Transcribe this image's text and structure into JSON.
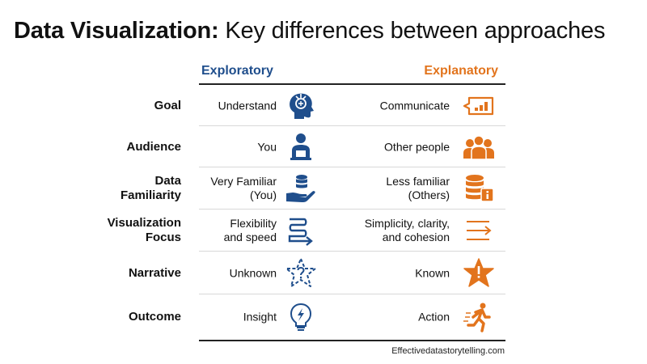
{
  "title": {
    "bold": "Data Visualization:",
    "rest": " Key differences between approaches"
  },
  "columns": {
    "exploratory": "Exploratory",
    "explanatory": "Explanatory"
  },
  "rows": [
    {
      "label": [
        "Goal"
      ],
      "exploratory": [
        "Understand"
      ],
      "exploratory_icon": "head-brain-icon",
      "explanatory": [
        "Communicate"
      ],
      "explanatory_icon": "speech-bubble-chart-icon"
    },
    {
      "label": [
        "Audience"
      ],
      "exploratory": [
        "You"
      ],
      "exploratory_icon": "person-laptop-icon",
      "explanatory": [
        "Other people"
      ],
      "explanatory_icon": "group-people-icon"
    },
    {
      "label": [
        "Data",
        "Familiarity"
      ],
      "exploratory": [
        "Very Familiar",
        "(You)"
      ],
      "exploratory_icon": "hand-database-icon",
      "explanatory": [
        "Less familiar",
        "(Others)"
      ],
      "explanatory_icon": "database-info-icon"
    },
    {
      "label": [
        "Visualization",
        "Focus"
      ],
      "exploratory": [
        "Flexibility",
        "and speed"
      ],
      "exploratory_icon": "lines-arrow-icon",
      "explanatory": [
        "Simplicity, clarity,",
        "and cohesion"
      ],
      "explanatory_icon": "simple-arrow-icon"
    },
    {
      "label": [
        "Narrative"
      ],
      "exploratory": [
        "Unknown"
      ],
      "exploratory_icon": "star-question-icon",
      "explanatory": [
        "Known"
      ],
      "explanatory_icon": "star-exclamation-icon"
    },
    {
      "label": [
        "Outcome"
      ],
      "exploratory": [
        "Insight"
      ],
      "exploratory_icon": "lightbulb-icon",
      "explanatory": [
        "Action"
      ],
      "explanatory_icon": "running-person-icon"
    }
  ],
  "source": "Effectivedatastorytelling.com",
  "colors": {
    "exploratory": "#1f4e8c",
    "explanatory": "#e2741d"
  }
}
